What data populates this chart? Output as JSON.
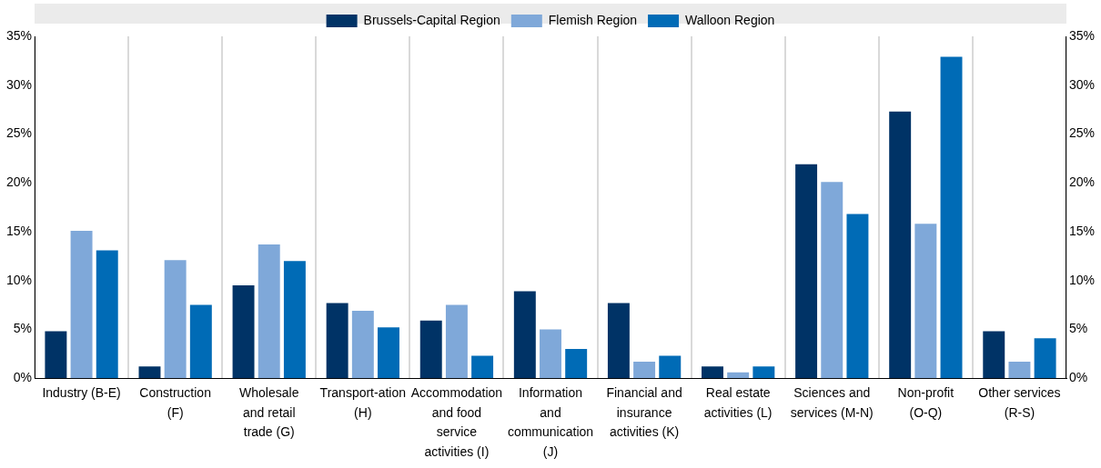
{
  "chart_data": {
    "type": "bar",
    "categories": [
      "Industry (B-E)",
      "Construction (F)",
      "Wholesale and retail trade (G)",
      "Transport-ation (H)",
      "Accommodation and food service activities (I)",
      "Information and communication (J)",
      "Financial and insurance activities (K)",
      "Real estate activities (L)",
      "Sciences and services (M-N)",
      "Non-profit (O-Q)",
      "Other services (R-S)"
    ],
    "series": [
      {
        "name": "Brussels-Capital Region",
        "color": "#003366",
        "values": [
          4.8,
          1.2,
          9.5,
          7.7,
          5.9,
          8.9,
          7.7,
          1.2,
          21.9,
          27.3,
          4.8
        ]
      },
      {
        "name": "Flemish Region",
        "color": "#7fa8d9",
        "values": [
          15.1,
          12.1,
          13.7,
          6.9,
          7.5,
          5.0,
          1.7,
          0.6,
          20.1,
          15.8,
          1.7
        ]
      },
      {
        "name": "Walloon Region",
        "color": "#006bb6",
        "values": [
          13.1,
          7.5,
          12.0,
          5.2,
          2.3,
          3.0,
          2.3,
          1.2,
          16.8,
          32.9,
          4.1
        ]
      }
    ],
    "ylim": [
      0,
      35
    ],
    "yticks": [
      {
        "value": 0,
        "label": "0%"
      },
      {
        "value": 5,
        "label": "5%"
      },
      {
        "value": 10,
        "label": "10%"
      },
      {
        "value": 15,
        "label": "15%"
      },
      {
        "value": 20,
        "label": "20%"
      },
      {
        "value": 25,
        "label": "25%"
      },
      {
        "value": 30,
        "label": "30%"
      },
      {
        "value": 35,
        "label": "35%"
      }
    ],
    "y2lim": [
      0,
      35
    ],
    "y2ticks": [
      {
        "value": 0,
        "label": "0%"
      },
      {
        "value": 5,
        "label": "5%"
      },
      {
        "value": 10,
        "label": "10%"
      },
      {
        "value": 15,
        "label": "15%"
      },
      {
        "value": 20,
        "label": "20%"
      },
      {
        "value": 25,
        "label": "25%"
      },
      {
        "value": 30,
        "label": "30%"
      },
      {
        "value": 35,
        "label": "35%"
      }
    ],
    "grid": "x",
    "legend": "top"
  }
}
